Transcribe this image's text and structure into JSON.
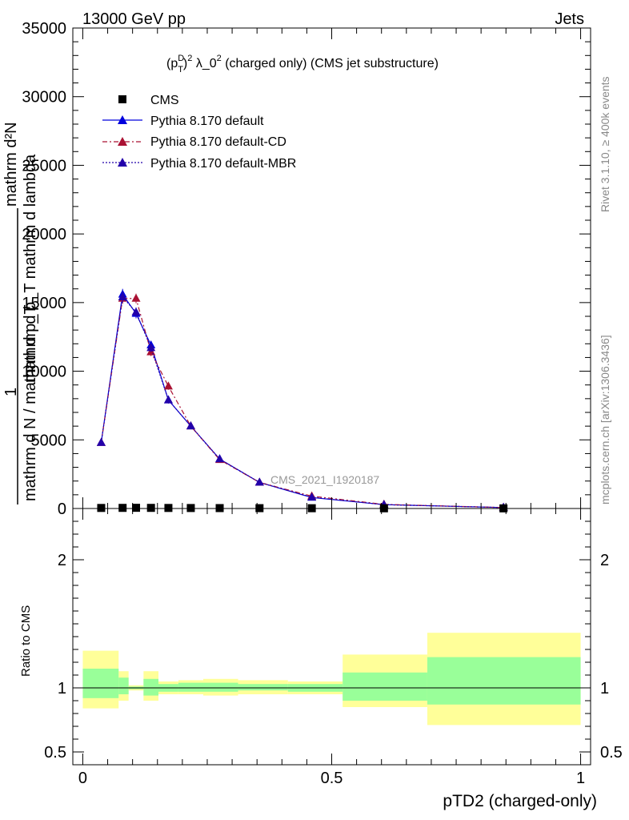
{
  "header": {
    "left": "13000 GeV pp",
    "right": "Jets"
  },
  "side_labels": {
    "rivet": "Rivet 3.1.10, ≥ 400k events",
    "mcplots": "mcplots.cern.ch [arXiv:1306.3436]"
  },
  "chart_data": {
    "type": "line",
    "title": "(p_T^D)^2 λ_0^2 (charged only) (CMS jet substructure)",
    "title_parts": {
      "p": "(p",
      "sup_d": "D",
      "sub_t": "T",
      "close": ")",
      "sup_2a": "2",
      "lambda": " λ_0",
      "sup_2b": "2",
      "rest": " (charged only) (CMS jet substructure)"
    },
    "xlabel": "pTD2 (charged-only)",
    "ylabel_numerator": "mathrm d²N",
    "ylabel_denominator_top": "mathrm d p_T mathrm d lambda",
    "ylabel_one": "1",
    "ylabel_denominator": "mathrm d N / mathrm d p_T",
    "ratio_ylabel": "Ratio to CMS",
    "watermark": "CMS_2021_I1920187",
    "xlim": [
      -0.02,
      1.02
    ],
    "ylim": [
      0,
      35000
    ],
    "ratio_ylim": [
      0.4,
      2.4
    ],
    "x_ticks": [
      {
        "v": 0,
        "label": "0"
      },
      {
        "v": 0.5,
        "label": "0.5"
      },
      {
        "v": 1,
        "label": "1"
      }
    ],
    "y_ticks": [
      {
        "v": 0,
        "label": "0"
      },
      {
        "v": 5000,
        "label": "5000"
      },
      {
        "v": 10000,
        "label": "10000"
      },
      {
        "v": 15000,
        "label": "15000"
      },
      {
        "v": 20000,
        "label": "20000"
      },
      {
        "v": 25000,
        "label": "25000"
      },
      {
        "v": 30000,
        "label": "30000"
      },
      {
        "v": 35000,
        "label": "35000"
      }
    ],
    "ratio_ticks": [
      {
        "v": 0.5,
        "label": "0.5"
      },
      {
        "v": 1,
        "label": "1"
      },
      {
        "v": 2,
        "label": "2"
      }
    ],
    "cms": {
      "name": "CMS",
      "x": [
        0.037,
        0.08,
        0.107,
        0.137,
        0.172,
        0.217,
        0.275,
        0.355,
        0.46,
        0.605,
        0.845
      ],
      "y": [
        40,
        45,
        50,
        45,
        40,
        35,
        30,
        25,
        20,
        15,
        10
      ]
    },
    "series": [
      {
        "name": "Pythia 8.170 default",
        "color": "#0000dd",
        "dash": "",
        "x": [
          0.037,
          0.08,
          0.107,
          0.137,
          0.172,
          0.217,
          0.275,
          0.355,
          0.46,
          0.605,
          0.845
        ],
        "y": [
          4800,
          15600,
          14200,
          11900,
          7900,
          6000,
          3600,
          1900,
          800,
          280,
          70
        ],
        "err": [
          150,
          400,
          350,
          300,
          250,
          200,
          150,
          100,
          60,
          40,
          20
        ]
      },
      {
        "name": "Pythia 8.170 default-CD",
        "color": "#aa1133",
        "dash": "6,3,2,3",
        "x": [
          0.037,
          0.08,
          0.107,
          0.137,
          0.172,
          0.217,
          0.275,
          0.355,
          0.46,
          0.605,
          0.845
        ],
        "y": [
          4800,
          15300,
          15300,
          11400,
          8900,
          6000,
          3550,
          1900,
          900,
          300,
          70
        ],
        "err": [
          150,
          400,
          350,
          300,
          250,
          200,
          150,
          100,
          60,
          40,
          20
        ]
      },
      {
        "name": "Pythia 8.170 default-MBR",
        "color": "#2200aa",
        "dash": "2,2",
        "x": [
          0.037,
          0.08,
          0.107,
          0.137,
          0.172,
          0.217,
          0.275,
          0.355,
          0.46,
          0.605,
          0.845
        ],
        "y": [
          4800,
          15400,
          14300,
          11700,
          7900,
          6000,
          3600,
          1900,
          820,
          280,
          70
        ],
        "err": [
          150,
          400,
          350,
          300,
          250,
          200,
          150,
          100,
          60,
          40,
          20
        ]
      }
    ],
    "ratio_bands": [
      {
        "x0": 0.0,
        "x1": 0.072,
        "inner": [
          0.92,
          1.15
        ],
        "outer": [
          0.84,
          1.29
        ]
      },
      {
        "x0": 0.072,
        "x1": 0.092,
        "inner": [
          0.95,
          1.08
        ],
        "outer": [
          0.9,
          1.13
        ]
      },
      {
        "x0": 0.092,
        "x1": 0.122,
        "inner": [
          0.99,
          1.01
        ],
        "outer": [
          0.98,
          1.02
        ]
      },
      {
        "x0": 0.122,
        "x1": 0.152,
        "inner": [
          0.94,
          1.07
        ],
        "outer": [
          0.9,
          1.13
        ]
      },
      {
        "x0": 0.152,
        "x1": 0.192,
        "inner": [
          0.97,
          1.03
        ],
        "outer": [
          0.95,
          1.05
        ]
      },
      {
        "x0": 0.192,
        "x1": 0.242,
        "inner": [
          0.97,
          1.04
        ],
        "outer": [
          0.95,
          1.06
        ]
      },
      {
        "x0": 0.242,
        "x1": 0.312,
        "inner": [
          0.97,
          1.04
        ],
        "outer": [
          0.94,
          1.07
        ]
      },
      {
        "x0": 0.312,
        "x1": 0.412,
        "inner": [
          0.98,
          1.03
        ],
        "outer": [
          0.95,
          1.06
        ]
      },
      {
        "x0": 0.412,
        "x1": 0.522,
        "inner": [
          0.97,
          1.03
        ],
        "outer": [
          0.95,
          1.05
        ]
      },
      {
        "x0": 0.522,
        "x1": 0.692,
        "inner": [
          0.9,
          1.12
        ],
        "outer": [
          0.85,
          1.26
        ]
      },
      {
        "x0": 0.692,
        "x1": 1.0,
        "inner": [
          0.87,
          1.24
        ],
        "outer": [
          0.71,
          1.43
        ]
      }
    ]
  }
}
